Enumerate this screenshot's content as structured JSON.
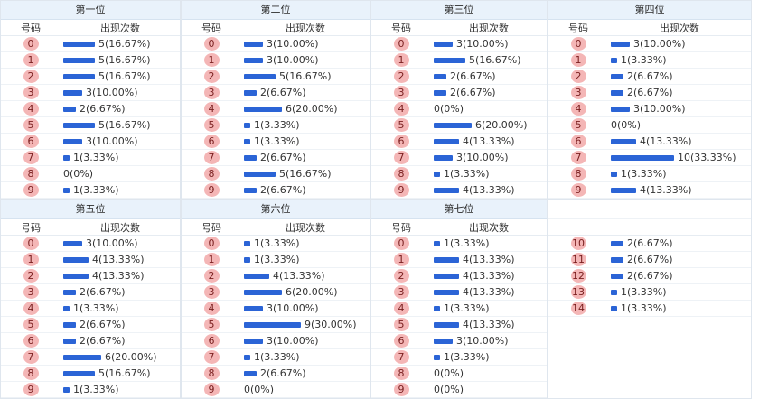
{
  "panels": [
    {
      "title": "第一位",
      "headers": {
        "num": "号码",
        "count": "出现次数"
      },
      "rows": [
        {
          "num": "0",
          "count_text": "5(16.67%)",
          "pct": 16.67
        },
        {
          "num": "1",
          "count_text": "5(16.67%)",
          "pct": 16.67
        },
        {
          "num": "2",
          "count_text": "5(16.67%)",
          "pct": 16.67
        },
        {
          "num": "3",
          "count_text": "3(10.00%)",
          "pct": 10.0
        },
        {
          "num": "4",
          "count_text": "2(6.67%)",
          "pct": 6.67
        },
        {
          "num": "5",
          "count_text": "5(16.67%)",
          "pct": 16.67
        },
        {
          "num": "6",
          "count_text": "3(10.00%)",
          "pct": 10.0
        },
        {
          "num": "7",
          "count_text": "1(3.33%)",
          "pct": 3.33
        },
        {
          "num": "8",
          "count_text": "0(0%)",
          "pct": 0
        },
        {
          "num": "9",
          "count_text": "1(3.33%)",
          "pct": 3.33
        }
      ]
    },
    {
      "title": "第二位",
      "headers": {
        "num": "号码",
        "count": "出现次数"
      },
      "rows": [
        {
          "num": "0",
          "count_text": "3(10.00%)",
          "pct": 10.0
        },
        {
          "num": "1",
          "count_text": "3(10.00%)",
          "pct": 10.0
        },
        {
          "num": "2",
          "count_text": "5(16.67%)",
          "pct": 16.67
        },
        {
          "num": "3",
          "count_text": "2(6.67%)",
          "pct": 6.67
        },
        {
          "num": "4",
          "count_text": "6(20.00%)",
          "pct": 20.0
        },
        {
          "num": "5",
          "count_text": "1(3.33%)",
          "pct": 3.33
        },
        {
          "num": "6",
          "count_text": "1(3.33%)",
          "pct": 3.33
        },
        {
          "num": "7",
          "count_text": "2(6.67%)",
          "pct": 6.67
        },
        {
          "num": "8",
          "count_text": "5(16.67%)",
          "pct": 16.67
        },
        {
          "num": "9",
          "count_text": "2(6.67%)",
          "pct": 6.67
        }
      ]
    },
    {
      "title": "第三位",
      "headers": {
        "num": "号码",
        "count": "出现次数"
      },
      "rows": [
        {
          "num": "0",
          "count_text": "3(10.00%)",
          "pct": 10.0
        },
        {
          "num": "1",
          "count_text": "5(16.67%)",
          "pct": 16.67
        },
        {
          "num": "2",
          "count_text": "2(6.67%)",
          "pct": 6.67
        },
        {
          "num": "3",
          "count_text": "2(6.67%)",
          "pct": 6.67
        },
        {
          "num": "4",
          "count_text": "0(0%)",
          "pct": 0
        },
        {
          "num": "5",
          "count_text": "6(20.00%)",
          "pct": 20.0
        },
        {
          "num": "6",
          "count_text": "4(13.33%)",
          "pct": 13.33
        },
        {
          "num": "7",
          "count_text": "3(10.00%)",
          "pct": 10.0
        },
        {
          "num": "8",
          "count_text": "1(3.33%)",
          "pct": 3.33
        },
        {
          "num": "9",
          "count_text": "4(13.33%)",
          "pct": 13.33
        }
      ]
    },
    {
      "title": "第四位",
      "headers": {
        "num": "号码",
        "count": "出现次数"
      },
      "rows": [
        {
          "num": "0",
          "count_text": "3(10.00%)",
          "pct": 10.0
        },
        {
          "num": "1",
          "count_text": "1(3.33%)",
          "pct": 3.33
        },
        {
          "num": "2",
          "count_text": "2(6.67%)",
          "pct": 6.67
        },
        {
          "num": "3",
          "count_text": "2(6.67%)",
          "pct": 6.67
        },
        {
          "num": "4",
          "count_text": "3(10.00%)",
          "pct": 10.0
        },
        {
          "num": "5",
          "count_text": "0(0%)",
          "pct": 0
        },
        {
          "num": "6",
          "count_text": "4(13.33%)",
          "pct": 13.33
        },
        {
          "num": "7",
          "count_text": "10(33.33%)",
          "pct": 33.33
        },
        {
          "num": "8",
          "count_text": "1(3.33%)",
          "pct": 3.33
        },
        {
          "num": "9",
          "count_text": "4(13.33%)",
          "pct": 13.33
        }
      ]
    },
    {
      "title": "第五位",
      "headers": {
        "num": "号码",
        "count": "出现次数"
      },
      "rows": [
        {
          "num": "0",
          "count_text": "3(10.00%)",
          "pct": 10.0
        },
        {
          "num": "1",
          "count_text": "4(13.33%)",
          "pct": 13.33
        },
        {
          "num": "2",
          "count_text": "4(13.33%)",
          "pct": 13.33
        },
        {
          "num": "3",
          "count_text": "2(6.67%)",
          "pct": 6.67
        },
        {
          "num": "4",
          "count_text": "1(3.33%)",
          "pct": 3.33
        },
        {
          "num": "5",
          "count_text": "2(6.67%)",
          "pct": 6.67
        },
        {
          "num": "6",
          "count_text": "2(6.67%)",
          "pct": 6.67
        },
        {
          "num": "7",
          "count_text": "6(20.00%)",
          "pct": 20.0
        },
        {
          "num": "8",
          "count_text": "5(16.67%)",
          "pct": 16.67
        },
        {
          "num": "9",
          "count_text": "1(3.33%)",
          "pct": 3.33
        }
      ]
    },
    {
      "title": "第六位",
      "headers": {
        "num": "号码",
        "count": "出现次数"
      },
      "rows": [
        {
          "num": "0",
          "count_text": "1(3.33%)",
          "pct": 3.33
        },
        {
          "num": "1",
          "count_text": "1(3.33%)",
          "pct": 3.33
        },
        {
          "num": "2",
          "count_text": "4(13.33%)",
          "pct": 13.33
        },
        {
          "num": "3",
          "count_text": "6(20.00%)",
          "pct": 20.0
        },
        {
          "num": "4",
          "count_text": "3(10.00%)",
          "pct": 10.0
        },
        {
          "num": "5",
          "count_text": "9(30.00%)",
          "pct": 30.0
        },
        {
          "num": "6",
          "count_text": "3(10.00%)",
          "pct": 10.0
        },
        {
          "num": "7",
          "count_text": "1(3.33%)",
          "pct": 3.33
        },
        {
          "num": "8",
          "count_text": "2(6.67%)",
          "pct": 6.67
        },
        {
          "num": "9",
          "count_text": "0(0%)",
          "pct": 0
        }
      ]
    },
    {
      "title": "第七位",
      "headers": {
        "num": "号码",
        "count": "出现次数"
      },
      "rows": [
        {
          "num": "0",
          "count_text": "1(3.33%)",
          "pct": 3.33
        },
        {
          "num": "1",
          "count_text": "4(13.33%)",
          "pct": 13.33
        },
        {
          "num": "2",
          "count_text": "4(13.33%)",
          "pct": 13.33
        },
        {
          "num": "3",
          "count_text": "4(13.33%)",
          "pct": 13.33
        },
        {
          "num": "4",
          "count_text": "1(3.33%)",
          "pct": 3.33
        },
        {
          "num": "5",
          "count_text": "4(13.33%)",
          "pct": 13.33
        },
        {
          "num": "6",
          "count_text": "3(10.00%)",
          "pct": 10.0
        },
        {
          "num": "7",
          "count_text": "1(3.33%)",
          "pct": 3.33
        },
        {
          "num": "8",
          "count_text": "0(0%)",
          "pct": 0
        },
        {
          "num": "9",
          "count_text": "0(0%)",
          "pct": 0
        }
      ]
    },
    {
      "title": "",
      "headers": {
        "num": "",
        "count": ""
      },
      "rows": [
        {
          "num": "10",
          "count_text": "2(6.67%)",
          "pct": 6.67
        },
        {
          "num": "11",
          "count_text": "2(6.67%)",
          "pct": 6.67
        },
        {
          "num": "12",
          "count_text": "2(6.67%)",
          "pct": 6.67
        },
        {
          "num": "13",
          "count_text": "1(3.33%)",
          "pct": 3.33
        },
        {
          "num": "14",
          "count_text": "1(3.33%)",
          "pct": 3.33
        }
      ]
    }
  ],
  "colors": {
    "ball_bg": "#f4b6b6",
    "ball_text": "#7a1f1f",
    "bar": "#2b64d6",
    "header_bg": "#e9f2fb",
    "border": "#dfe6ee"
  },
  "icons": {
    "number_ball": "number-ball",
    "frequency_bar": "frequency-bar"
  }
}
